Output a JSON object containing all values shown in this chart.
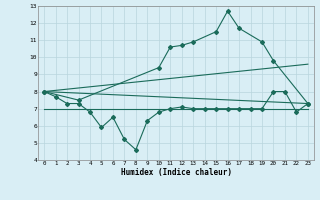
{
  "xlabel": "Humidex (Indice chaleur)",
  "x": [
    0,
    1,
    2,
    3,
    4,
    5,
    6,
    7,
    8,
    9,
    10,
    11,
    12,
    13,
    14,
    15,
    16,
    17,
    18,
    19,
    20,
    21,
    22,
    23
  ],
  "line1": [
    8.0,
    7.7,
    7.3,
    7.3,
    6.8,
    5.9,
    6.5,
    5.2,
    4.6,
    6.3,
    6.8,
    7.0,
    7.1,
    7.0,
    7.0,
    7.0,
    7.0,
    7.0,
    7.0,
    7.0,
    8.0,
    8.0,
    6.8,
    7.3
  ],
  "line2": [
    8.0,
    null,
    null,
    7.5,
    null,
    null,
    null,
    null,
    null,
    null,
    9.4,
    10.6,
    10.7,
    10.9,
    null,
    11.5,
    12.7,
    11.7,
    null,
    10.9,
    9.8,
    null,
    null,
    7.3
  ],
  "line3": [
    [
      0,
      8.0
    ],
    [
      23,
      7.3
    ]
  ],
  "line4": [
    [
      0,
      8.0
    ],
    [
      23,
      9.6
    ]
  ],
  "line5": [
    [
      0,
      7.0
    ],
    [
      23,
      7.0
    ]
  ],
  "ylim": [
    4,
    13
  ],
  "xlim": [
    -0.5,
    23.5
  ],
  "yticks": [
    4,
    5,
    6,
    7,
    8,
    9,
    10,
    11,
    12,
    13
  ],
  "xticks": [
    0,
    1,
    2,
    3,
    4,
    5,
    6,
    7,
    8,
    9,
    10,
    11,
    12,
    13,
    14,
    15,
    16,
    17,
    18,
    19,
    20,
    21,
    22,
    23
  ],
  "line_color": "#1a6b5a",
  "bg_color": "#d9eef5",
  "grid_color": "#b8d5de"
}
